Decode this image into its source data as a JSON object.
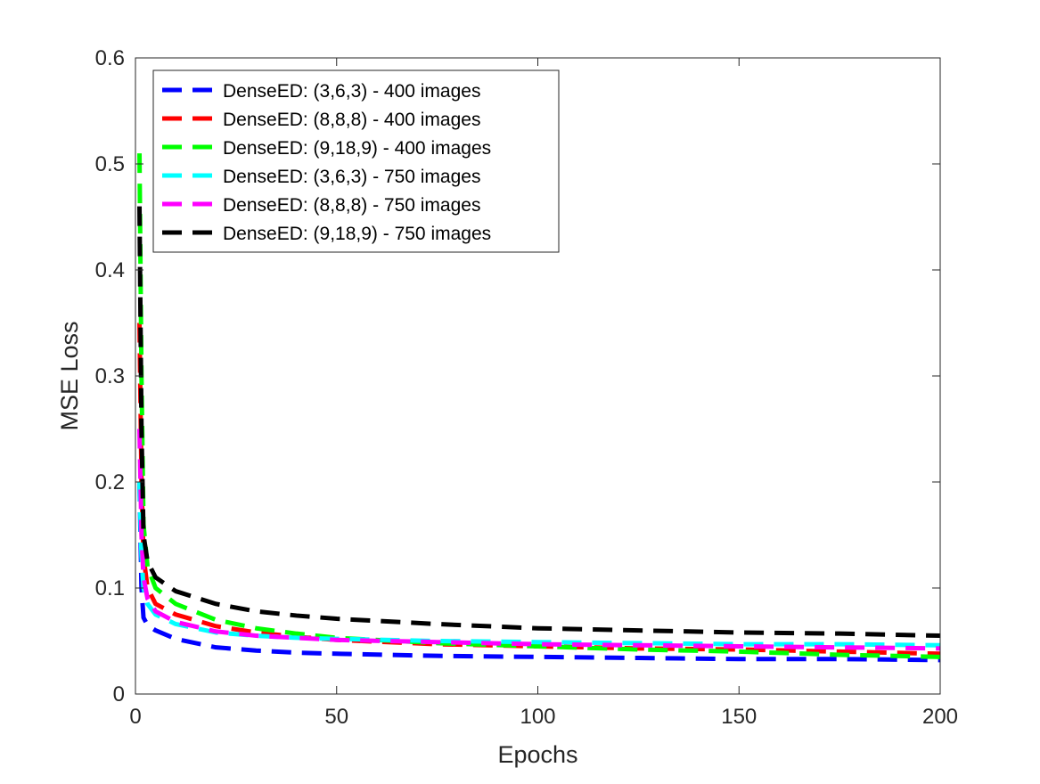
{
  "chart_data": {
    "type": "line",
    "title": "",
    "xlabel": "Epochs",
    "ylabel": "MSE Loss",
    "xlim": [
      0,
      200
    ],
    "ylim": [
      0,
      0.6
    ],
    "xticks": [
      0,
      50,
      100,
      150,
      200
    ],
    "yticks": [
      0,
      0.1,
      0.2,
      0.3,
      0.4,
      0.5,
      0.6
    ],
    "xtick_labels": [
      "0",
      "50",
      "100",
      "150",
      "200"
    ],
    "ytick_labels": [
      "0",
      "0.1",
      "0.2",
      "0.3",
      "0.4",
      "0.5",
      "0.6"
    ],
    "grid": false,
    "legend_position": "top-left",
    "line_style": "dashed",
    "series": [
      {
        "name": "DenseED: (3,6,3) - 400 images",
        "color": "#0000ff",
        "x": [
          1,
          1.5,
          2,
          3,
          5,
          10,
          20,
          30,
          40,
          50,
          75,
          100,
          125,
          150,
          175,
          200
        ],
        "y": [
          0.2,
          0.1,
          0.072,
          0.065,
          0.06,
          0.052,
          0.044,
          0.041,
          0.039,
          0.038,
          0.036,
          0.035,
          0.034,
          0.033,
          0.033,
          0.032
        ]
      },
      {
        "name": "DenseED: (8,8,8) - 400 images",
        "color": "#ff0000",
        "x": [
          1,
          1.5,
          2,
          3,
          5,
          10,
          20,
          30,
          40,
          50,
          75,
          100,
          125,
          150,
          175,
          200
        ],
        "y": [
          0.35,
          0.2,
          0.13,
          0.1,
          0.085,
          0.075,
          0.064,
          0.058,
          0.054,
          0.051,
          0.047,
          0.045,
          0.043,
          0.042,
          0.04,
          0.038
        ]
      },
      {
        "name": "DenseED: (9,18,9) - 400 images",
        "color": "#00ff00",
        "x": [
          1,
          1.5,
          2,
          3,
          5,
          10,
          20,
          30,
          40,
          50,
          75,
          100,
          125,
          150,
          175,
          200
        ],
        "y": [
          0.51,
          0.3,
          0.16,
          0.12,
          0.1,
          0.085,
          0.07,
          0.062,
          0.057,
          0.053,
          0.048,
          0.045,
          0.042,
          0.04,
          0.037,
          0.035
        ]
      },
      {
        "name": "DenseED: (3,6,3) - 750 images",
        "color": "#00ffff",
        "x": [
          1,
          1.5,
          2,
          3,
          5,
          10,
          20,
          30,
          40,
          50,
          75,
          100,
          125,
          150,
          175,
          200
        ],
        "y": [
          0.2,
          0.13,
          0.1,
          0.085,
          0.075,
          0.066,
          0.058,
          0.055,
          0.053,
          0.052,
          0.05,
          0.049,
          0.048,
          0.047,
          0.047,
          0.046
        ]
      },
      {
        "name": "DenseED: (8,8,8) - 750 images",
        "color": "#ff00ff",
        "x": [
          1,
          1.5,
          2,
          3,
          5,
          10,
          20,
          30,
          40,
          50,
          75,
          100,
          125,
          150,
          175,
          200
        ],
        "y": [
          0.25,
          0.15,
          0.11,
          0.09,
          0.078,
          0.068,
          0.059,
          0.055,
          0.053,
          0.051,
          0.049,
          0.047,
          0.046,
          0.045,
          0.044,
          0.043
        ]
      },
      {
        "name": "DenseED: (9,18,9) - 750 images",
        "color": "#000000",
        "x": [
          1,
          1.5,
          2,
          3,
          5,
          10,
          20,
          30,
          40,
          50,
          75,
          100,
          125,
          150,
          175,
          200
        ],
        "y": [
          0.46,
          0.25,
          0.15,
          0.125,
          0.11,
          0.097,
          0.085,
          0.078,
          0.074,
          0.071,
          0.066,
          0.062,
          0.06,
          0.058,
          0.057,
          0.055
        ]
      }
    ]
  }
}
